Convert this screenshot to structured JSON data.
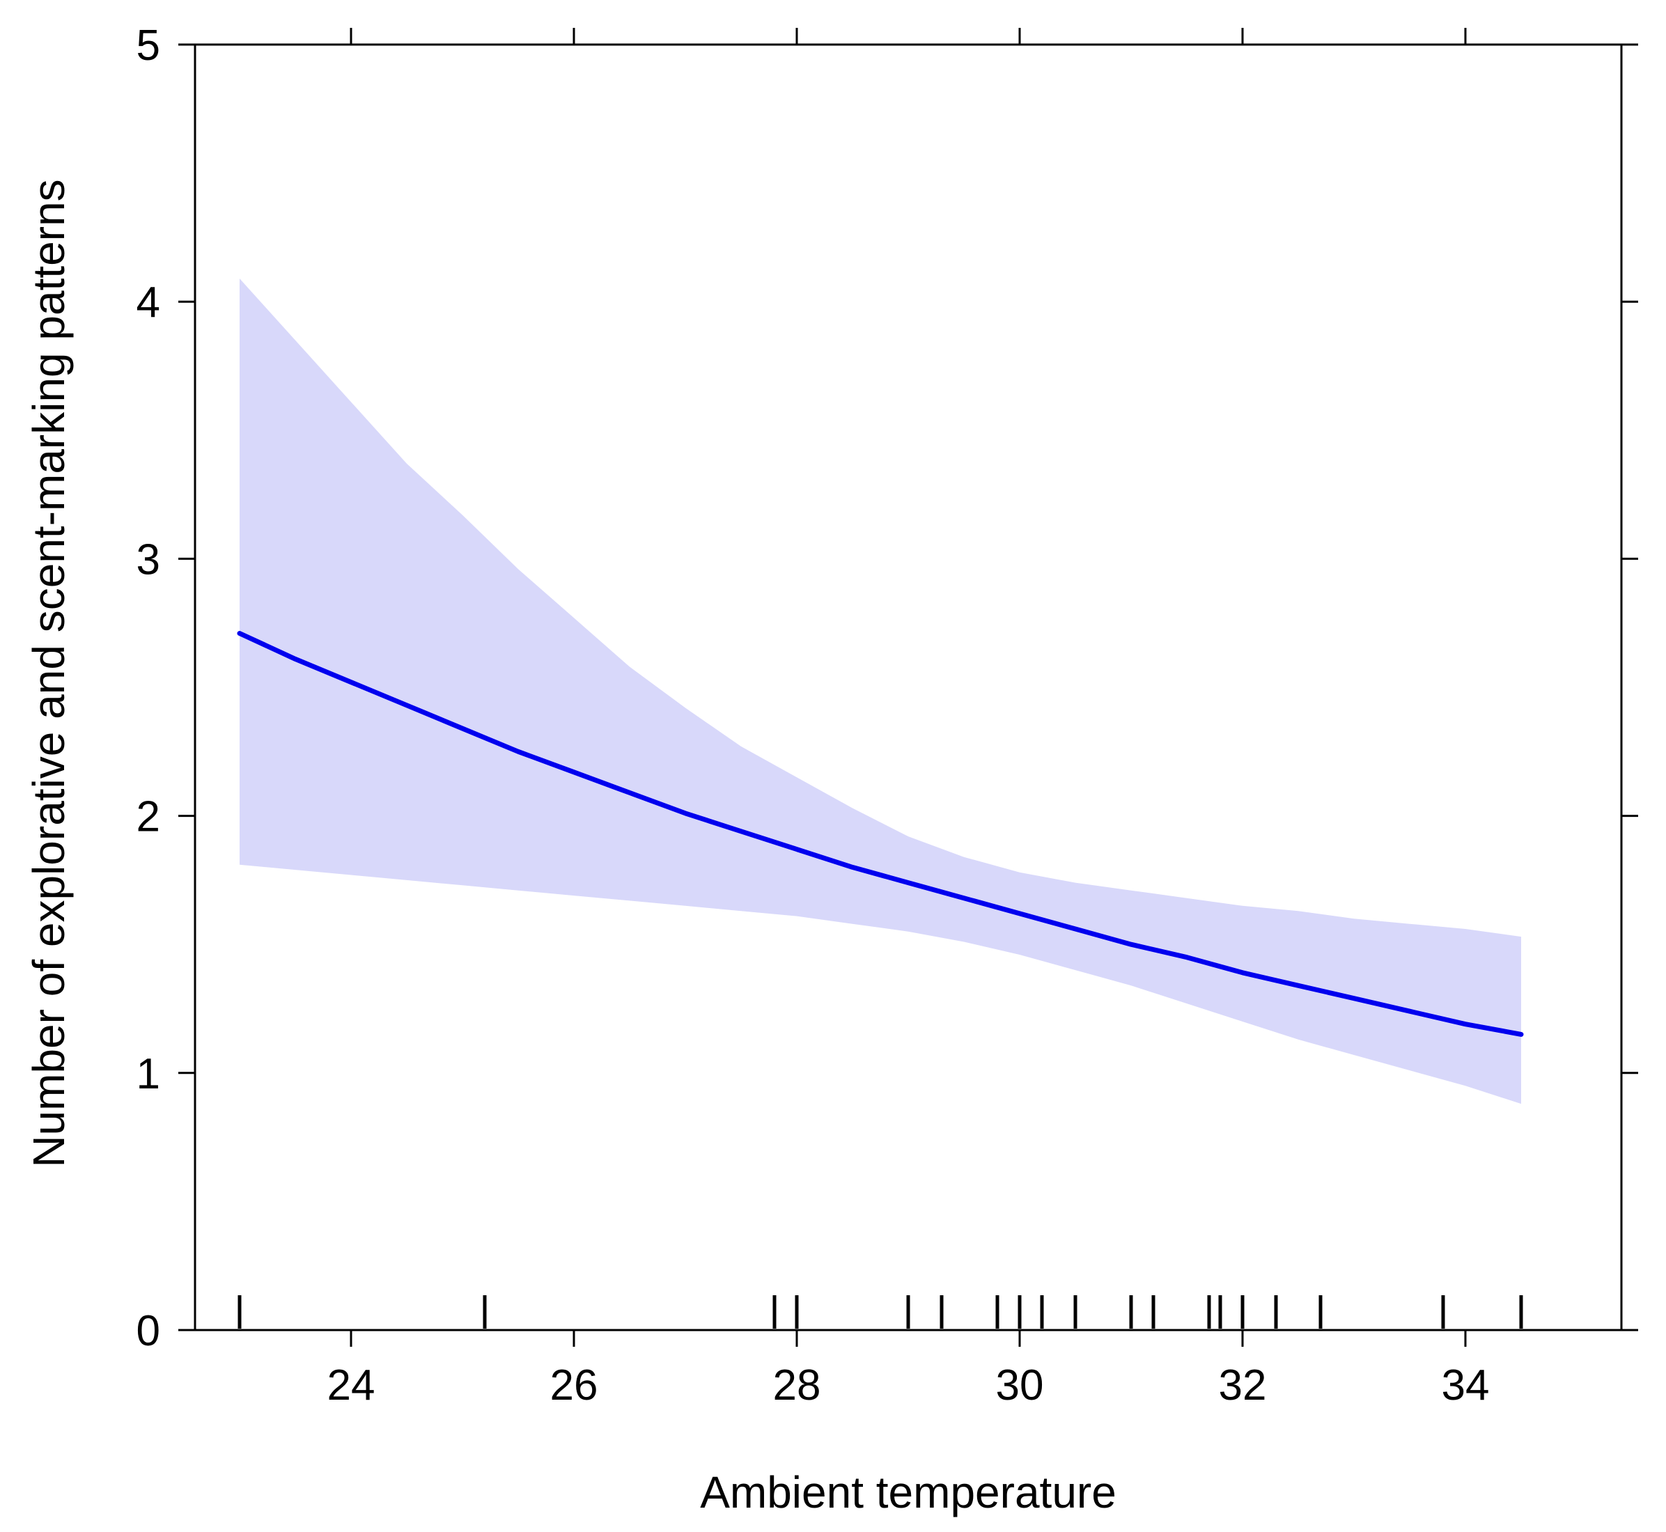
{
  "chart_data": {
    "type": "line",
    "xlabel": "Ambient temperature",
    "ylabel": "Number of explorative and scent-marking patterns",
    "xlim": [
      22.6,
      35.4
    ],
    "ylim": [
      0,
      5
    ],
    "x_ticks": [
      24,
      26,
      28,
      30,
      32,
      34
    ],
    "y_ticks": [
      0,
      1,
      2,
      3,
      4,
      5
    ],
    "grid": false,
    "series": [
      {
        "type": "line",
        "color": "#0000ee",
        "x": [
          23.0,
          23.5,
          24.0,
          24.5,
          25.0,
          25.5,
          26.0,
          26.5,
          27.0,
          27.5,
          28.0,
          28.5,
          29.0,
          29.5,
          30.0,
          30.5,
          31.0,
          31.5,
          32.0,
          32.5,
          33.0,
          33.5,
          34.0,
          34.5
        ],
        "y": [
          2.71,
          2.61,
          2.52,
          2.43,
          2.34,
          2.25,
          2.17,
          2.09,
          2.01,
          1.94,
          1.87,
          1.8,
          1.74,
          1.68,
          1.62,
          1.56,
          1.5,
          1.45,
          1.39,
          1.34,
          1.29,
          1.24,
          1.19,
          1.15
        ]
      }
    ],
    "confidence_band": {
      "color": "#d8d8fa",
      "x": [
        23.0,
        23.5,
        24.0,
        24.5,
        25.0,
        25.5,
        26.0,
        26.5,
        27.0,
        27.5,
        28.0,
        28.5,
        29.0,
        29.5,
        30.0,
        30.5,
        31.0,
        31.5,
        32.0,
        32.5,
        33.0,
        33.5,
        34.0,
        34.5
      ],
      "upper": [
        4.09,
        3.85,
        3.61,
        3.37,
        3.17,
        2.96,
        2.77,
        2.58,
        2.42,
        2.27,
        2.15,
        2.03,
        1.92,
        1.84,
        1.78,
        1.74,
        1.71,
        1.68,
        1.65,
        1.63,
        1.6,
        1.58,
        1.56,
        1.53
      ],
      "lower": [
        1.81,
        1.79,
        1.77,
        1.75,
        1.73,
        1.71,
        1.69,
        1.67,
        1.65,
        1.63,
        1.61,
        1.58,
        1.55,
        1.51,
        1.46,
        1.4,
        1.34,
        1.27,
        1.2,
        1.13,
        1.07,
        1.01,
        0.95,
        0.88
      ]
    },
    "rug": [
      23.0,
      25.2,
      27.8,
      28.0,
      29.0,
      29.3,
      29.8,
      30.0,
      30.2,
      30.5,
      31.0,
      31.2,
      31.7,
      31.8,
      32.0,
      32.3,
      32.7,
      33.8,
      34.5
    ]
  }
}
